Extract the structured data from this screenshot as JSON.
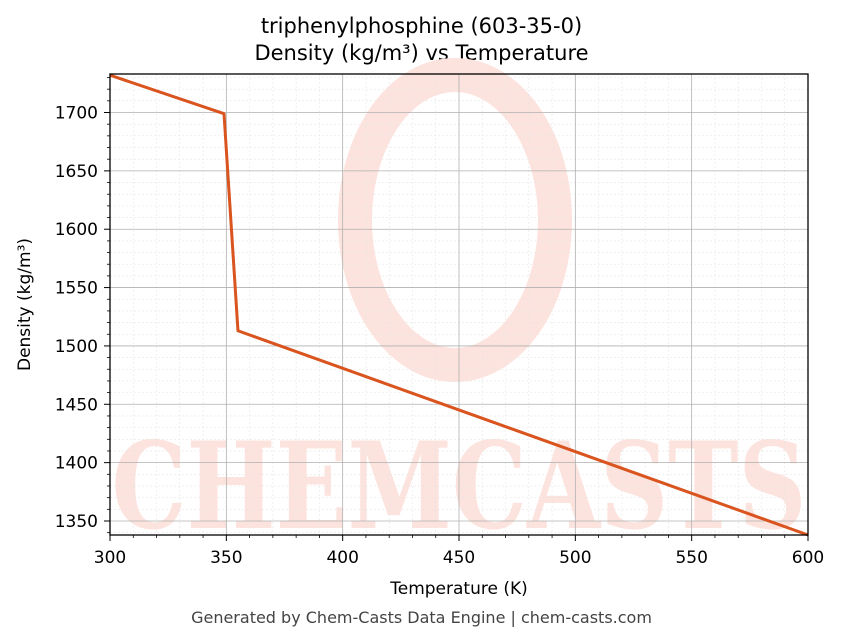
{
  "chart_data": {
    "type": "line",
    "title": "triphenylphosphine (603-35-0)",
    "subtitle": "Density (kg/m³) vs Temperature",
    "xlabel": "Temperature (K)",
    "ylabel": "Density (kg/m³)",
    "xlim": [
      300,
      600
    ],
    "ylim": [
      1338,
      1733
    ],
    "xticks": [
      300,
      350,
      400,
      450,
      500,
      550,
      600
    ],
    "yticks": [
      1350,
      1400,
      1450,
      1500,
      1550,
      1600,
      1650,
      1700
    ],
    "grid": true,
    "legend": "none",
    "series": [
      {
        "color": "#d9541e",
        "x": [
          300,
          349,
          355,
          600
        ],
        "y": [
          1732,
          1699,
          1513,
          1338
        ]
      }
    ]
  },
  "watermark": {
    "text": "CHEMCASTS",
    "color": "#fde3dd"
  },
  "footer": "Generated by Chem-Casts Data Engine | chem-casts.com"
}
